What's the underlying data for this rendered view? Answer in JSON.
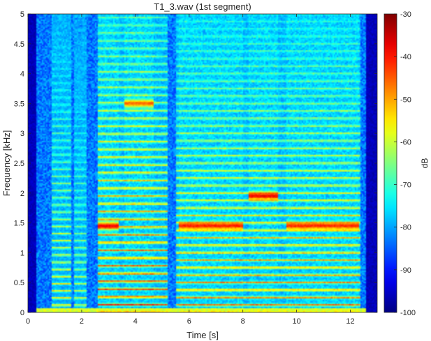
{
  "chart_data": {
    "type": "heatmap",
    "title": "T1_3.wav (1st segment)",
    "xlabel": "Time [s]",
    "ylabel": "Frequency [kHz]",
    "xlim": [
      0,
      13
    ],
    "ylim": [
      0,
      5
    ],
    "x_ticks": [
      0,
      2,
      4,
      6,
      8,
      10,
      12
    ],
    "y_ticks": [
      0,
      0.5,
      1,
      1.5,
      2,
      2.5,
      3,
      3.5,
      4,
      4.5,
      5
    ],
    "colorbar": {
      "label": "dB",
      "range": [
        -100,
        -30
      ],
      "ticks": [
        -100,
        -90,
        -80,
        -70,
        -60,
        -50,
        -40,
        -30
      ],
      "colormap": "jet"
    },
    "grid": false,
    "voiced_segments": [
      {
        "start": 0.9,
        "end": 1.6,
        "f0_khz": 0.12,
        "level_db": -55
      },
      {
        "start": 1.7,
        "end": 2.2,
        "f0_khz": 0.12,
        "level_db": -60
      },
      {
        "start": 2.6,
        "end": 5.2,
        "f0_khz": 0.13,
        "level_db": -45
      },
      {
        "start": 5.5,
        "end": 12.4,
        "f0_khz": 0.125,
        "level_db": -50
      }
    ],
    "formant_tracks": [
      {
        "start": 2.6,
        "end": 3.4,
        "f_khz": 1.45,
        "level_db": -40
      },
      {
        "start": 3.6,
        "end": 4.7,
        "f_khz": 3.5,
        "level_db": -48
      },
      {
        "start": 5.6,
        "end": 8.0,
        "f_khz": 1.45,
        "level_db": -42
      },
      {
        "start": 8.2,
        "end": 9.3,
        "f_khz": 1.95,
        "level_db": -40
      },
      {
        "start": 9.6,
        "end": 12.3,
        "f_khz": 1.45,
        "level_db": -43
      }
    ]
  }
}
